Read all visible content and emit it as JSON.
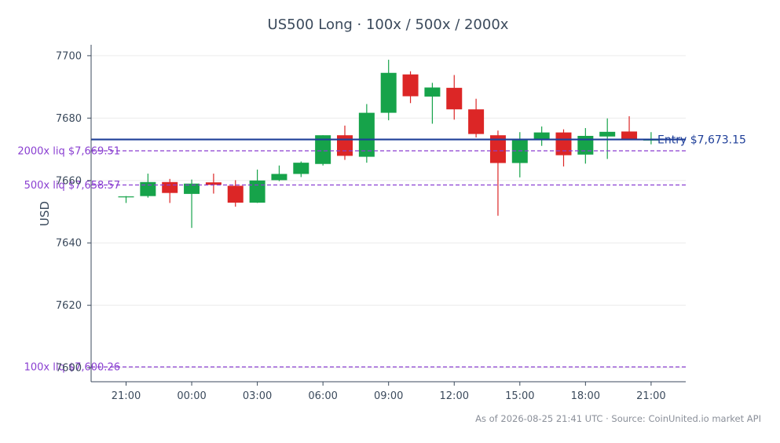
{
  "chart_data": {
    "type": "candlestick",
    "title": "US500 Long · 100x / 500x / 2000x",
    "ylabel": "USD",
    "ylim": [
      7595.5,
      7703.5
    ],
    "yticks": [
      7600,
      7620,
      7640,
      7660,
      7680,
      7700
    ],
    "ytick_labels": [
      "7600",
      "7620",
      "7640",
      "7660",
      "7680",
      "7700"
    ],
    "x_tick_labels": [
      "21:00",
      "00:00",
      "03:00",
      "06:00",
      "09:00",
      "12:00",
      "15:00",
      "18:00",
      "21:00"
    ],
    "x_tick_index": [
      0,
      3,
      6,
      9,
      12,
      15,
      18,
      21,
      24
    ],
    "grid": true,
    "up_color": "#16a34a",
    "down_color": "#dc2626",
    "candles": [
      {
        "t": "21:00",
        "o": 7654.8,
        "h": 7655.0,
        "l": 7652.8,
        "c": 7654.9
      },
      {
        "t": "22:00",
        "o": 7655.0,
        "h": 7662.2,
        "l": 7654.5,
        "c": 7659.5
      },
      {
        "t": "23:00",
        "o": 7659.5,
        "h": 7660.5,
        "l": 7652.8,
        "c": 7656.0
      },
      {
        "t": "00:00",
        "o": 7655.7,
        "h": 7660.3,
        "l": 7644.8,
        "c": 7659.0
      },
      {
        "t": "01:00",
        "o": 7659.4,
        "h": 7662.2,
        "l": 7655.8,
        "c": 7658.6
      },
      {
        "t": "02:00",
        "o": 7658.3,
        "h": 7660.1,
        "l": 7651.6,
        "c": 7652.9
      },
      {
        "t": "03:00",
        "o": 7652.9,
        "h": 7663.5,
        "l": 7652.8,
        "c": 7660.0
      },
      {
        "t": "04:00",
        "o": 7660.1,
        "h": 7664.8,
        "l": 7659.8,
        "c": 7662.1
      },
      {
        "t": "05:00",
        "o": 7662.1,
        "h": 7666.1,
        "l": 7661.1,
        "c": 7665.7
      },
      {
        "t": "06:00",
        "o": 7665.3,
        "h": 7674.5,
        "l": 7664.8,
        "c": 7674.5
      },
      {
        "t": "07:00",
        "o": 7674.5,
        "h": 7677.6,
        "l": 7666.6,
        "c": 7667.9
      },
      {
        "t": "08:00",
        "o": 7667.6,
        "h": 7684.5,
        "l": 7665.7,
        "c": 7681.7
      },
      {
        "t": "09:00",
        "o": 7681.7,
        "h": 7698.7,
        "l": 7679.3,
        "c": 7694.5
      },
      {
        "t": "10:00",
        "o": 7694.0,
        "h": 7695.0,
        "l": 7684.8,
        "c": 7687.0
      },
      {
        "t": "11:00",
        "o": 7686.9,
        "h": 7691.3,
        "l": 7678.2,
        "c": 7689.8
      },
      {
        "t": "12:00",
        "o": 7689.7,
        "h": 7693.8,
        "l": 7679.5,
        "c": 7682.8
      },
      {
        "t": "13:00",
        "o": 7682.8,
        "h": 7686.2,
        "l": 7673.8,
        "c": 7674.9
      },
      {
        "t": "14:00",
        "o": 7674.5,
        "h": 7676.0,
        "l": 7648.7,
        "c": 7665.6
      },
      {
        "t": "15:00",
        "o": 7665.6,
        "h": 7675.5,
        "l": 7661.0,
        "c": 7672.9
      },
      {
        "t": "16:00",
        "o": 7673.0,
        "h": 7677.3,
        "l": 7671.1,
        "c": 7675.4
      },
      {
        "t": "17:00",
        "o": 7675.4,
        "h": 7676.4,
        "l": 7664.5,
        "c": 7668.1
      },
      {
        "t": "18:00",
        "o": 7668.3,
        "h": 7676.8,
        "l": 7665.4,
        "c": 7674.3
      },
      {
        "t": "19:00",
        "o": 7674.1,
        "h": 7679.9,
        "l": 7666.9,
        "c": 7675.6
      },
      {
        "t": "20:00",
        "o": 7675.7,
        "h": 7680.6,
        "l": 7673.1,
        "c": 7673.2
      },
      {
        "t": "21:00",
        "o": 7673.1,
        "h": 7675.5,
        "l": 7671.6,
        "c": 7673.1
      }
    ],
    "entry": {
      "label": "Entry $7,673.15",
      "value": 7673.15,
      "color": "#1f3f99"
    },
    "liquidation_levels": [
      {
        "label": "2000x liq $7,669.51",
        "value": 7669.51
      },
      {
        "label": "500x liq $7,658.57",
        "value": 7658.57
      },
      {
        "label": "100x liq $7,600.26",
        "value": 7600.26
      }
    ],
    "liq_color": "#8a3fd1",
    "footer": "As of 2026-08-25 21:41 UTC · Source: CoinUnited.io market API"
  }
}
